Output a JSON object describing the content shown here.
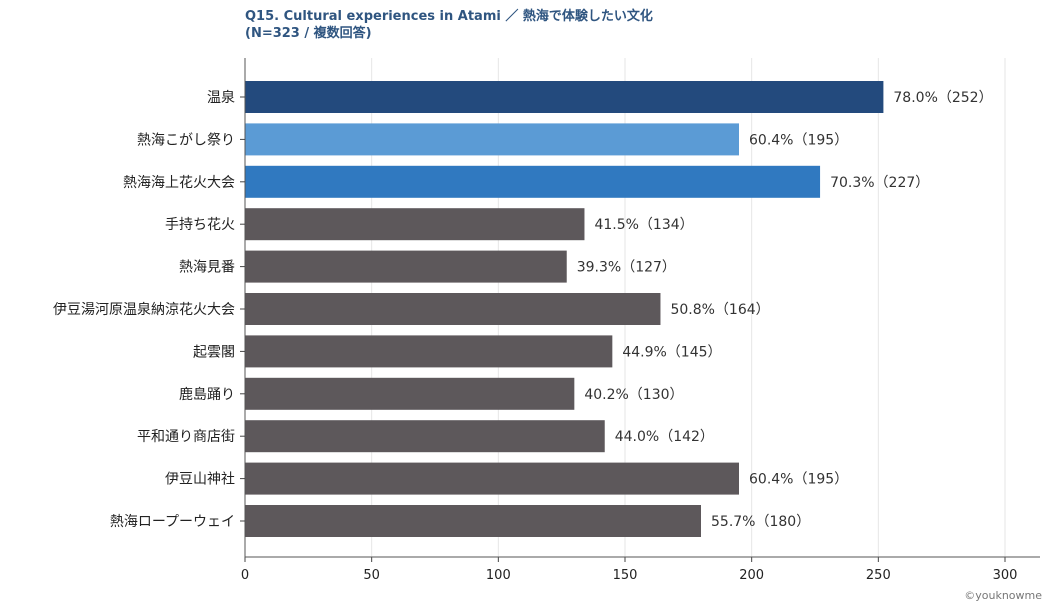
{
  "chart_data": {
    "type": "bar",
    "orientation": "horizontal",
    "title_line1": "Q15. Cultural experiences in Atami ／ 熱海で体験したい文化",
    "title_line2": "(N=323 / 複数回答)",
    "categories": [
      "温泉",
      "熱海こがし祭り",
      "熱海海上花火大会",
      "手持ち花火",
      "熱海見番",
      "伊豆湯河原温泉納涼花火大会",
      "起雲閣",
      "鹿島踊り",
      "平和通り商店街",
      "伊豆山神社",
      "熱海ロープーウェイ"
    ],
    "values": [
      252,
      195,
      227,
      134,
      127,
      164,
      145,
      130,
      142,
      195,
      180
    ],
    "data_labels": [
      "78.0%（252）",
      "60.4%（195）",
      "70.3%（227）",
      "41.5%（134）",
      "39.3%（127）",
      "50.8%（164）",
      "44.9%（145）",
      "40.2%（130）",
      "44.0%（142）",
      "60.4%（195）",
      "55.7%（180）"
    ],
    "bar_colors": [
      "#234a7d",
      "#5b9bd5",
      "#3079c0",
      "#5d585b",
      "#5d585b",
      "#5d585b",
      "#5d585b",
      "#5d585b",
      "#5d585b",
      "#5d585b",
      "#5d585b"
    ],
    "xlim": [
      0,
      300
    ],
    "xticks": [
      "0",
      "50",
      "100",
      "150",
      "200",
      "250",
      "300"
    ],
    "xtick_values": [
      0,
      50,
      100,
      150,
      200,
      250,
      300
    ],
    "grid": "vertical",
    "legend": "none"
  },
  "watermark": "©youknowme"
}
